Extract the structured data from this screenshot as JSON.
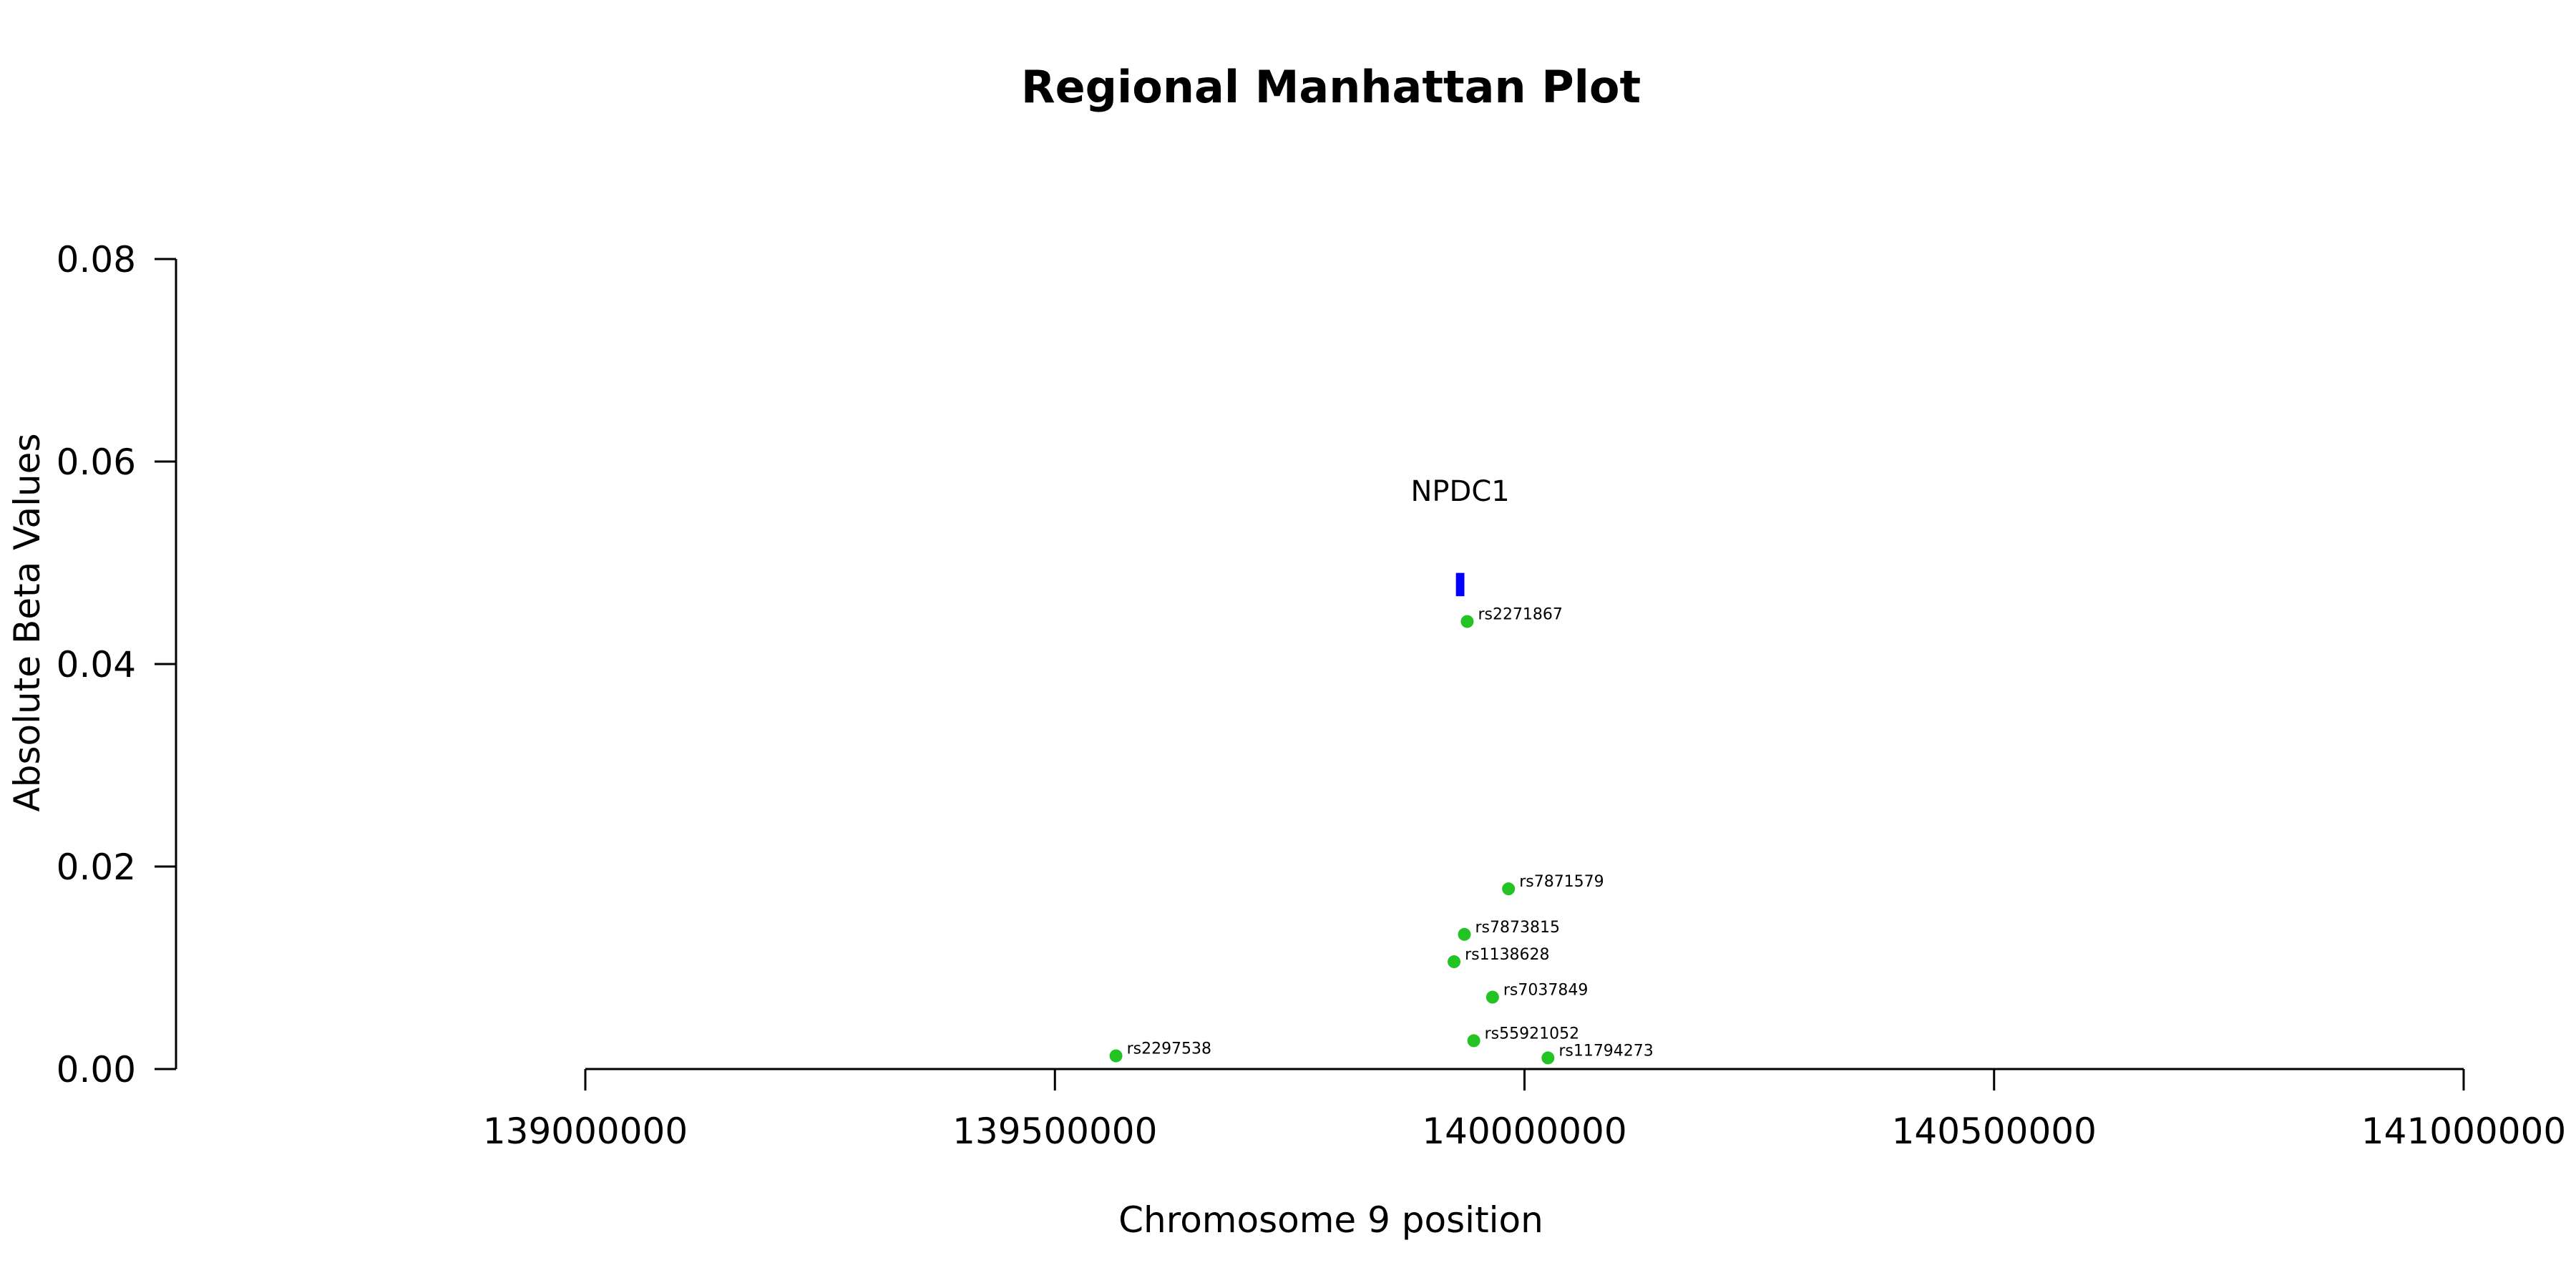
{
  "chart_data": {
    "type": "scatter",
    "title": "Regional Manhattan Plot",
    "xlabel": "Chromosome 9 position",
    "ylabel": "Absolute Beta Values",
    "xlim": [
      139000000,
      141000000
    ],
    "ylim": [
      0,
      0.08
    ],
    "x_ticks": [
      139000000,
      139500000,
      140000000,
      140500000,
      141000000
    ],
    "x_tick_labels": [
      "139000000",
      "139500000",
      "140000000",
      "140500000",
      "141000000"
    ],
    "y_ticks": [
      0,
      0.02,
      0.04,
      0.06,
      0.08
    ],
    "y_tick_labels": [
      "0.00",
      "0.02",
      "0.04",
      "0.06",
      "0.08"
    ],
    "grid": false,
    "point_color": "#22c322",
    "gene_color": "#0000ff",
    "gene": {
      "label": "NPDC1",
      "start": 139927000,
      "end": 139936000,
      "y_low": 0.0467,
      "y_high": 0.049
    },
    "points": [
      {
        "label": "rs2297538",
        "x": 139565000,
        "y": 0.0013
      },
      {
        "label": "rs2271867",
        "x": 139939000,
        "y": 0.0442
      },
      {
        "label": "rs7871579",
        "x": 139983000,
        "y": 0.0178
      },
      {
        "label": "rs7873815",
        "x": 139936000,
        "y": 0.0133
      },
      {
        "label": "rs1138628",
        "x": 139925000,
        "y": 0.0106
      },
      {
        "label": "rs7037849",
        "x": 139966000,
        "y": 0.0071
      },
      {
        "label": "rs55921052",
        "x": 139946000,
        "y": 0.0028
      },
      {
        "label": "rs11794273",
        "x": 140025000,
        "y": 0.0011
      }
    ]
  }
}
